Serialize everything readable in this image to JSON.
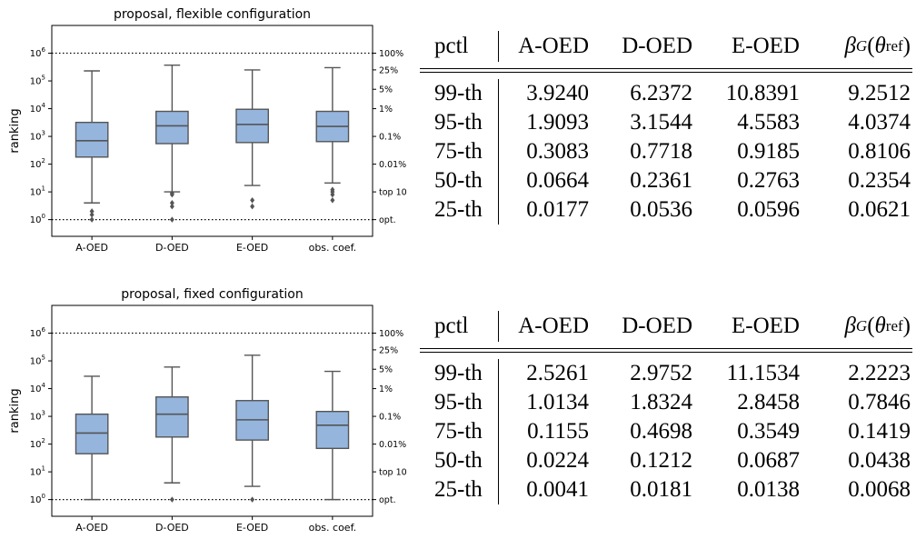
{
  "chart_data": [
    {
      "type": "box",
      "title": "proposal, flexible configuration",
      "ylabel": "ranking",
      "yscale": "log",
      "ylim": [
        0.25,
        10000000
      ],
      "y_ticks": [
        {
          "value": 1,
          "label": "10^0"
        },
        {
          "value": 10,
          "label": "10^1"
        },
        {
          "value": 100,
          "label": "10^2"
        },
        {
          "value": 1000,
          "label": "10^3"
        },
        {
          "value": 10000,
          "label": "10^4"
        },
        {
          "value": 100000,
          "label": "10^5"
        },
        {
          "value": 1000000,
          "label": "10^6"
        }
      ],
      "right_labels": [
        {
          "value": 1000000,
          "label": "100%"
        },
        {
          "value": 250000,
          "label": "25%"
        },
        {
          "value": 50000,
          "label": "5%"
        },
        {
          "value": 10000,
          "label": "1%"
        },
        {
          "value": 1000,
          "label": "0.1%"
        },
        {
          "value": 100,
          "label": "0.01%"
        },
        {
          "value": 10,
          "label": "top 10"
        },
        {
          "value": 1,
          "label": "opt."
        }
      ],
      "reference_lines": [
        1000000,
        1
      ],
      "box_color": "#95b5dd",
      "categories": [
        "A-OED",
        "D-OED",
        "E-OED",
        "obs. coef."
      ],
      "boxes": [
        {
          "whisker_low": 4,
          "q1": 180,
          "median": 700,
          "q3": 3200,
          "whisker_high": 230000,
          "outliers": [
            1,
            1.5,
            2
          ]
        },
        {
          "whisker_low": 10,
          "q1": 550,
          "median": 2400,
          "q3": 8000,
          "whisker_high": 370000,
          "outliers": [
            1,
            3,
            4,
            8,
            9
          ]
        },
        {
          "whisker_low": 17,
          "q1": 600,
          "median": 2700,
          "q3": 9500,
          "whisker_high": 250000,
          "outliers": [
            3,
            5
          ]
        },
        {
          "whisker_low": 21,
          "q1": 650,
          "median": 2300,
          "q3": 8000,
          "whisker_high": 300000,
          "outliers": [
            5,
            8,
            10,
            12
          ]
        }
      ]
    },
    {
      "type": "box",
      "title": "proposal, fixed configuration",
      "ylabel": "ranking",
      "yscale": "log",
      "ylim": [
        0.25,
        10000000
      ],
      "y_ticks": [
        {
          "value": 1,
          "label": "10^0"
        },
        {
          "value": 10,
          "label": "10^1"
        },
        {
          "value": 100,
          "label": "10^2"
        },
        {
          "value": 1000,
          "label": "10^3"
        },
        {
          "value": 10000,
          "label": "10^4"
        },
        {
          "value": 100000,
          "label": "10^5"
        },
        {
          "value": 1000000,
          "label": "10^6"
        }
      ],
      "right_labels": [
        {
          "value": 1000000,
          "label": "100%"
        },
        {
          "value": 250000,
          "label": "25%"
        },
        {
          "value": 50000,
          "label": "5%"
        },
        {
          "value": 10000,
          "label": "1%"
        },
        {
          "value": 1000,
          "label": "0.1%"
        },
        {
          "value": 100,
          "label": "0.01%"
        },
        {
          "value": 10,
          "label": "top 10"
        },
        {
          "value": 1,
          "label": "opt."
        }
      ],
      "reference_lines": [
        1000000,
        1
      ],
      "box_color": "#95b5dd",
      "categories": [
        "A-OED",
        "D-OED",
        "E-OED",
        "obs. coef."
      ],
      "boxes": [
        {
          "whisker_low": 1,
          "q1": 45,
          "median": 250,
          "q3": 1200,
          "whisker_high": 28000,
          "outliers": []
        },
        {
          "whisker_low": 4,
          "q1": 180,
          "median": 1200,
          "q3": 5000,
          "whisker_high": 60000,
          "outliers": [
            1
          ]
        },
        {
          "whisker_low": 3,
          "q1": 140,
          "median": 750,
          "q3": 3700,
          "whisker_high": 160000,
          "outliers": [
            1
          ]
        },
        {
          "whisker_low": 1,
          "q1": 70,
          "median": 480,
          "q3": 1500,
          "whisker_high": 42000,
          "outliers": []
        }
      ]
    }
  ],
  "tables": [
    {
      "headers": [
        "pctl",
        "A-OED",
        "D-OED",
        "E-OED"
      ],
      "last_header": {
        "base": "β",
        "sub": "G",
        "arg": "θ",
        "arg_sub": "ref"
      },
      "rows": [
        [
          "99-th",
          "3.9240",
          "6.2372",
          "10.8391",
          "9.2512"
        ],
        [
          "95-th",
          "1.9093",
          "3.1544",
          "4.5583",
          "4.0374"
        ],
        [
          "75-th",
          "0.3083",
          "0.7718",
          "0.9185",
          "0.8106"
        ],
        [
          "50-th",
          "0.0664",
          "0.2361",
          "0.2763",
          "0.2354"
        ],
        [
          "25-th",
          "0.0177",
          "0.0536",
          "0.0596",
          "0.0621"
        ]
      ]
    },
    {
      "headers": [
        "pctl",
        "A-OED",
        "D-OED",
        "E-OED"
      ],
      "last_header": {
        "base": "β",
        "sub": "G",
        "arg": "θ",
        "arg_sub": "ref"
      },
      "rows": [
        [
          "99-th",
          "2.5261",
          "2.9752",
          "11.1534",
          "2.2223"
        ],
        [
          "95-th",
          "1.0134",
          "1.8324",
          "2.8458",
          "0.7846"
        ],
        [
          "75-th",
          "0.1155",
          "0.4698",
          "0.3549",
          "0.1419"
        ],
        [
          "50-th",
          "0.0224",
          "0.1212",
          "0.0687",
          "0.0438"
        ],
        [
          "25-th",
          "0.0041",
          "0.0181",
          "0.0138",
          "0.0068"
        ]
      ]
    }
  ]
}
